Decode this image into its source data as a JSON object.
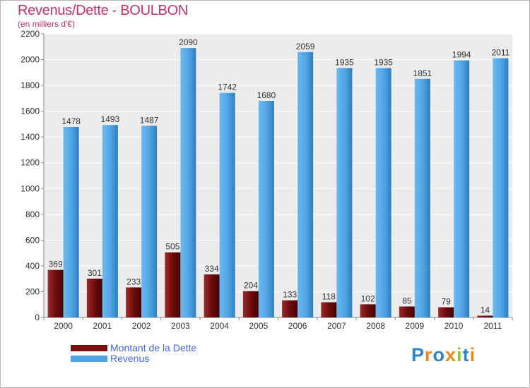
{
  "header": {
    "title": "Revenus/Dette - BOULBON",
    "subtitle": "(en milliers d'€)"
  },
  "legend": {
    "items": [
      {
        "label": "Montant de la Dette",
        "color": "#7a1010"
      },
      {
        "label": "Revenus",
        "color": "#4ea3e4"
      }
    ]
  },
  "brand": {
    "name": "Proxiti"
  },
  "chart_data": {
    "type": "bar",
    "title": "Revenus/Dette - BOULBON",
    "subtitle": "(en milliers d'€)",
    "xlabel": "",
    "ylabel": "",
    "categories": [
      "2000",
      "2001",
      "2002",
      "2003",
      "2004",
      "2005",
      "2006",
      "2007",
      "2008",
      "2009",
      "2010",
      "2011"
    ],
    "series": [
      {
        "name": "Montant de la Dette",
        "color": "#7a1010",
        "values": [
          369,
          301,
          233,
          505,
          334,
          204,
          133,
          118,
          102,
          85,
          79,
          14
        ]
      },
      {
        "name": "Revenus",
        "color": "#4ea3e4",
        "values": [
          1478,
          1493,
          1487,
          2090,
          1742,
          1680,
          2059,
          1935,
          1935,
          1851,
          1994,
          2011
        ]
      }
    ],
    "yticks": [
      0,
      200,
      400,
      600,
      800,
      1000,
      1200,
      1400,
      1600,
      1800,
      2000,
      2200
    ],
    "ylim": [
      0,
      2200
    ],
    "grid": true,
    "legend_position": "bottom-left"
  }
}
